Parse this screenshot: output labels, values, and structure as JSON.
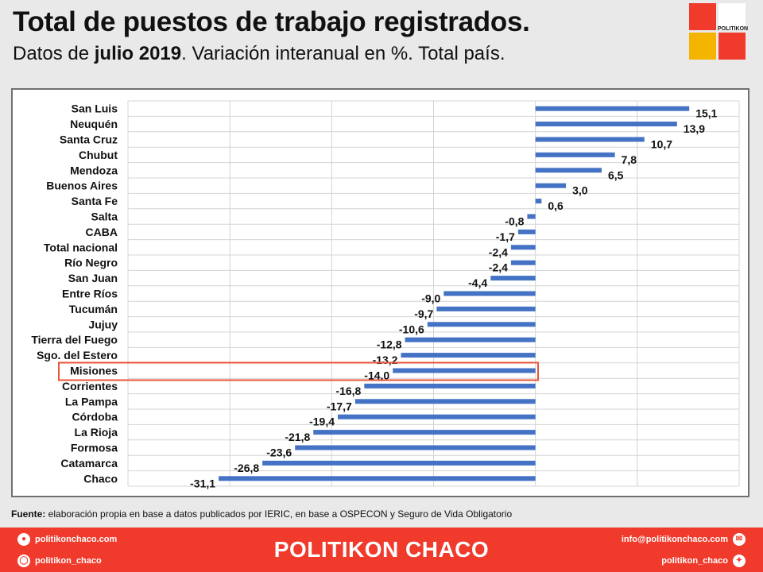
{
  "header": {
    "title": "Total de puestos de trabajo registrados.",
    "subtitle_pre": "Datos de ",
    "subtitle_bold": "julio 2019",
    "subtitle_post": ". Variación interanual en %. Total país."
  },
  "logo": {
    "text": "POLITIKON",
    "colors": [
      "#ef3a2c",
      "#ffffff",
      "#f5b400",
      "#ef3a2c"
    ]
  },
  "chart_data": {
    "type": "bar",
    "orientation": "horizontal",
    "categories": [
      "San Luis",
      "Neuquén",
      "Santa Cruz",
      "Chubut",
      "Mendoza",
      "Buenos Aires",
      "Santa Fe",
      "Salta",
      "CABA",
      "Total nacional",
      "Río Negro",
      "San Juan",
      "Entre Ríos",
      "Tucumán",
      "Jujuy",
      "Tierra del Fuego",
      "Sgo. del Estero",
      "Misiones",
      "Corrientes",
      "La Pampa",
      "Córdoba",
      "La Rioja",
      "Formosa",
      "Catamarca",
      "Chaco"
    ],
    "values": [
      15.1,
      13.9,
      10.7,
      7.8,
      6.5,
      3.0,
      0.6,
      -0.8,
      -1.7,
      -2.4,
      -2.4,
      -4.4,
      -9.0,
      -9.7,
      -10.6,
      -12.8,
      -13.2,
      -14.0,
      -16.8,
      -17.7,
      -19.4,
      -21.8,
      -23.6,
      -26.8,
      -31.1
    ],
    "labels": [
      "15,1",
      "13,9",
      "10,7",
      "7,8",
      "6,5",
      "3,0",
      "0,6",
      "-0,8",
      "-1,7",
      "-2,4",
      "-2,4",
      "-4,4",
      "-9,0",
      "-9,7",
      "-10,6",
      "-12,8",
      "-13,2",
      "-14,0",
      "-16,8",
      "-17,7",
      "-19,4",
      "-21,8",
      "-23,6",
      "-26,8",
      "-31,1"
    ],
    "xlim": [
      -40,
      20
    ],
    "grid": true,
    "bar_color": "#4472c4",
    "highlight": "Misiones",
    "highlight_color": "#e8553a"
  },
  "source": {
    "label": "Fuente:",
    "text": " elaboración propia en base a datos publicados por IERIC,  en base a OSPECON  y Seguro de Vida Obligatorio"
  },
  "footer": {
    "brand": "POLITIKON CHACO",
    "web": "politikonchaco.com",
    "instagram": "politikon_chaco",
    "email": "info@politikonchaco.com",
    "twitter": "politikon_chaco",
    "background": "#ef3a2c"
  }
}
